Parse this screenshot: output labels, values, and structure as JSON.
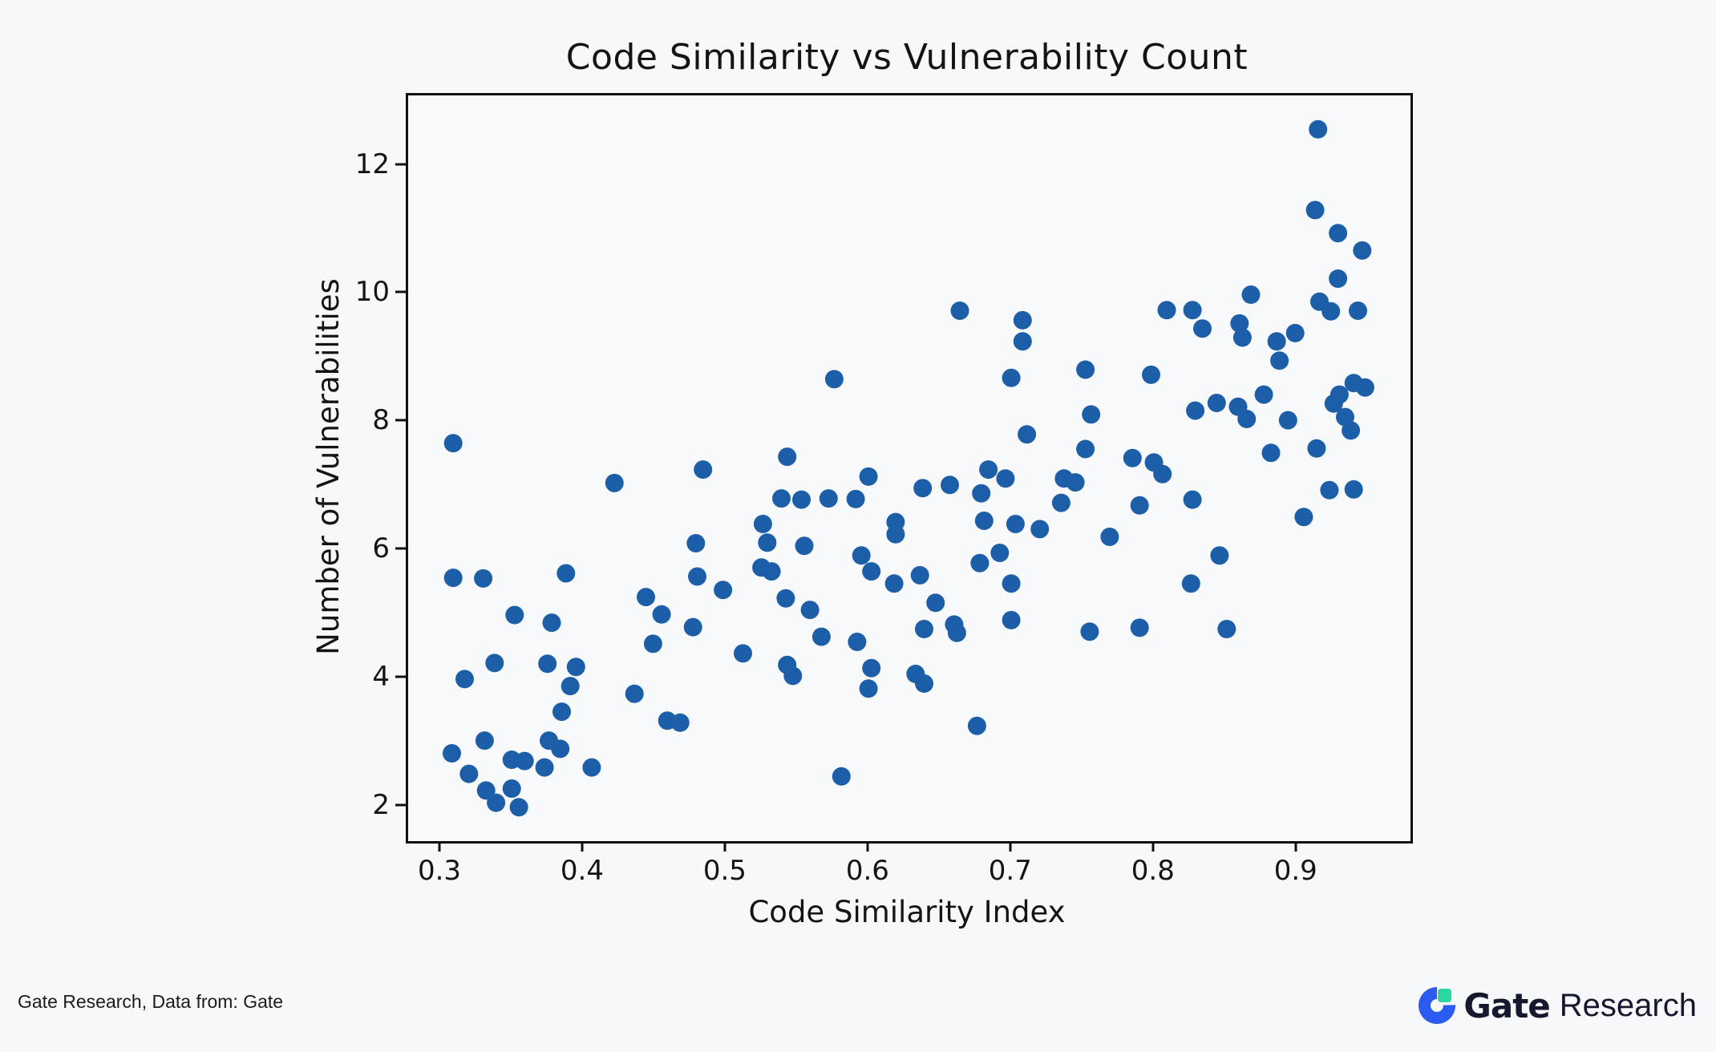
{
  "page": {
    "background": "#f7f8fa",
    "footer": {
      "source_text": "Gate Research, Data from: Gate",
      "logo": {
        "brand_bold": "Gate",
        "brand_regular": "Research",
        "mark_blue": "#2b5bf0",
        "mark_green": "#2cd6a3",
        "text_color": "#16182d"
      }
    }
  },
  "chart_data": {
    "type": "scatter",
    "title": "Code Similarity vs Vulnerability Count",
    "xlabel": "Code Similarity Index",
    "ylabel": "Number of Vulnerabilities",
    "xlim": [
      0.2764,
      0.9788
    ],
    "ylim": [
      1.47,
      13.11
    ],
    "xticks": [
      0.3,
      0.4,
      0.5,
      0.6,
      0.7,
      0.8,
      0.9
    ],
    "yticks": [
      2,
      4,
      6,
      8,
      10,
      12
    ],
    "grid": false,
    "legend": null,
    "marker_color": "#1d5ea9",
    "marker_radius_px": 11.5,
    "points": [
      [
        0.308,
        7.68
      ],
      [
        0.421,
        7.06
      ],
      [
        0.483,
        7.27
      ],
      [
        0.478,
        6.12
      ],
      [
        0.479,
        5.6
      ],
      [
        0.497,
        5.39
      ],
      [
        0.443,
        5.28
      ],
      [
        0.454,
        5.01
      ],
      [
        0.476,
        4.81
      ],
      [
        0.448,
        4.55
      ],
      [
        0.511,
        4.4
      ],
      [
        0.435,
        3.77
      ],
      [
        0.458,
        3.35
      ],
      [
        0.467,
        3.32
      ],
      [
        0.308,
        5.58
      ],
      [
        0.329,
        5.57
      ],
      [
        0.387,
        5.65
      ],
      [
        0.351,
        5.0
      ],
      [
        0.377,
        4.88
      ],
      [
        0.337,
        4.25
      ],
      [
        0.316,
        4.0
      ],
      [
        0.374,
        4.24
      ],
      [
        0.394,
        4.19
      ],
      [
        0.39,
        3.89
      ],
      [
        0.384,
        3.49
      ],
      [
        0.33,
        3.04
      ],
      [
        0.375,
        3.04
      ],
      [
        0.383,
        2.91
      ],
      [
        0.307,
        2.84
      ],
      [
        0.349,
        2.74
      ],
      [
        0.358,
        2.72
      ],
      [
        0.372,
        2.62
      ],
      [
        0.405,
        2.62
      ],
      [
        0.319,
        2.52
      ],
      [
        0.331,
        2.26
      ],
      [
        0.349,
        2.29
      ],
      [
        0.338,
        2.07
      ],
      [
        0.354,
        2.0
      ],
      [
        0.542,
        7.47
      ],
      [
        0.599,
        7.16
      ],
      [
        0.538,
        6.82
      ],
      [
        0.552,
        6.8
      ],
      [
        0.571,
        6.82
      ],
      [
        0.59,
        6.81
      ],
      [
        0.637,
        6.98
      ],
      [
        0.525,
        6.42
      ],
      [
        0.618,
        6.45
      ],
      [
        0.618,
        6.26
      ],
      [
        0.528,
        6.13
      ],
      [
        0.554,
        6.08
      ],
      [
        0.594,
        5.93
      ],
      [
        0.524,
        5.74
      ],
      [
        0.531,
        5.68
      ],
      [
        0.601,
        5.68
      ],
      [
        0.617,
        5.49
      ],
      [
        0.541,
        5.26
      ],
      [
        0.635,
        5.62
      ],
      [
        0.558,
        5.08
      ],
      [
        0.566,
        4.66
      ],
      [
        0.591,
        4.58
      ],
      [
        0.542,
        4.22
      ],
      [
        0.546,
        4.05
      ],
      [
        0.601,
        4.17
      ],
      [
        0.599,
        3.85
      ],
      [
        0.632,
        4.08
      ],
      [
        0.638,
        3.93
      ],
      [
        0.58,
        2.48
      ],
      [
        0.638,
        4.78
      ],
      [
        0.646,
        5.19
      ],
      [
        0.575,
        8.68
      ],
      [
        0.663,
        9.75
      ],
      [
        0.707,
        9.6
      ],
      [
        0.707,
        9.27
      ],
      [
        0.699,
        8.7
      ],
      [
        0.751,
        8.83
      ],
      [
        0.755,
        8.13
      ],
      [
        0.751,
        7.59
      ],
      [
        0.71,
        7.82
      ],
      [
        0.683,
        7.27
      ],
      [
        0.695,
        7.13
      ],
      [
        0.656,
        7.03
      ],
      [
        0.678,
        6.9
      ],
      [
        0.736,
        7.13
      ],
      [
        0.744,
        7.07
      ],
      [
        0.734,
        6.75
      ],
      [
        0.68,
        6.47
      ],
      [
        0.702,
        6.42
      ],
      [
        0.719,
        6.34
      ],
      [
        0.768,
        6.22
      ],
      [
        0.691,
        5.97
      ],
      [
        0.677,
        5.81
      ],
      [
        0.699,
        5.49
      ],
      [
        0.699,
        4.92
      ],
      [
        0.659,
        4.85
      ],
      [
        0.661,
        4.72
      ],
      [
        0.754,
        4.74
      ],
      [
        0.675,
        3.27
      ],
      [
        0.914,
        12.58
      ],
      [
        0.912,
        11.32
      ],
      [
        0.928,
        10.96
      ],
      [
        0.945,
        10.69
      ],
      [
        0.928,
        10.25
      ],
      [
        0.867,
        10.0
      ],
      [
        0.915,
        9.89
      ],
      [
        0.923,
        9.74
      ],
      [
        0.942,
        9.75
      ],
      [
        0.808,
        9.76
      ],
      [
        0.826,
        9.76
      ],
      [
        0.833,
        9.47
      ],
      [
        0.859,
        9.55
      ],
      [
        0.861,
        9.33
      ],
      [
        0.898,
        9.4
      ],
      [
        0.885,
        9.27
      ],
      [
        0.887,
        8.97
      ],
      [
        0.797,
        8.75
      ],
      [
        0.876,
        8.44
      ],
      [
        0.843,
        8.31
      ],
      [
        0.828,
        8.19
      ],
      [
        0.858,
        8.25
      ],
      [
        0.864,
        8.06
      ],
      [
        0.893,
        8.04
      ],
      [
        0.939,
        8.62
      ],
      [
        0.947,
        8.55
      ],
      [
        0.929,
        8.44
      ],
      [
        0.925,
        8.3
      ],
      [
        0.933,
        8.09
      ],
      [
        0.937,
        7.88
      ],
      [
        0.784,
        7.45
      ],
      [
        0.799,
        7.38
      ],
      [
        0.805,
        7.2
      ],
      [
        0.881,
        7.53
      ],
      [
        0.913,
        7.6
      ],
      [
        0.922,
        6.95
      ],
      [
        0.939,
        6.96
      ],
      [
        0.904,
        6.53
      ],
      [
        0.789,
        6.71
      ],
      [
        0.826,
        6.8
      ],
      [
        0.845,
        5.93
      ],
      [
        0.825,
        5.49
      ],
      [
        0.789,
        4.8
      ],
      [
        0.85,
        4.78
      ]
    ]
  }
}
